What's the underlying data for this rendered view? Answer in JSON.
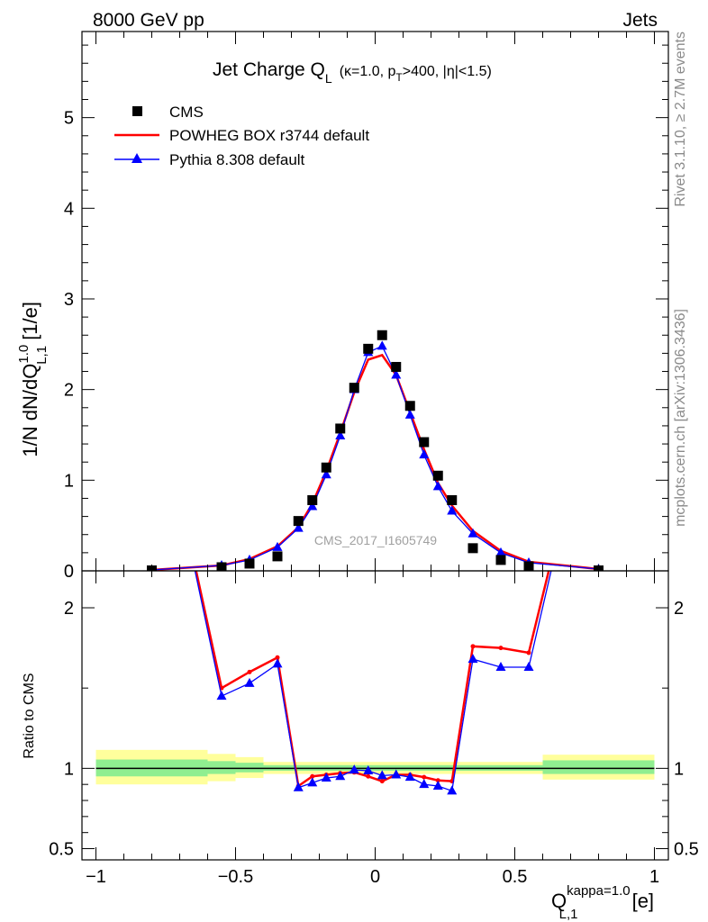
{
  "header": {
    "left": "8000 GeV pp",
    "right": "Jets"
  },
  "side_labels": {
    "rivet": "Rivet 3.1.10, ≥ 2.7M events",
    "mcplots": "mcplots.cern.ch [arXiv:1306.3436]"
  },
  "watermark": "CMS_2017_I1605749",
  "chart_data": [
    {
      "type": "line",
      "panel": "main",
      "title": {
        "main": "Jet Charge Q",
        "main_sub": "L",
        "params": "(κ=1.0, p",
        "params_sub": "T",
        "params_rest": ">400, |η|<1.5)"
      },
      "ylabel": {
        "prefix": "1/N dN/dQ",
        "sup": "1.0",
        "sub": "L,1",
        "suffix": " [1/e]"
      },
      "xlim": [
        -1.05,
        1.05
      ],
      "ylim": [
        0,
        5.95
      ],
      "yticks": [
        0,
        1,
        2,
        3,
        4,
        5
      ],
      "ytick_labels": [
        "0",
        "1",
        "2",
        "3",
        "4",
        "5"
      ],
      "legend_position": "top-left",
      "legend": [
        "CMS",
        "POWHEG BOX r3744 default",
        "Pythia 8.308 default"
      ],
      "x": [
        -0.8,
        -0.55,
        -0.45,
        -0.35,
        -0.275,
        -0.225,
        -0.175,
        -0.125,
        -0.075,
        -0.025,
        0.025,
        0.075,
        0.125,
        0.175,
        0.225,
        0.275,
        0.35,
        0.45,
        0.55,
        0.8
      ],
      "series": [
        {
          "name": "CMS",
          "color": "#000000",
          "marker": "square",
          "values": [
            0.005,
            0.04,
            0.08,
            0.16,
            0.55,
            0.78,
            1.14,
            1.57,
            2.02,
            2.45,
            2.6,
            2.25,
            1.82,
            1.42,
            1.05,
            0.78,
            0.25,
            0.12,
            0.05,
            0.005
          ]
        },
        {
          "name": "POWHEG BOX r3744 default",
          "color": "#ff0000",
          "marker": "none",
          "values": [
            0.01,
            0.06,
            0.13,
            0.27,
            0.48,
            0.74,
            1.1,
            1.52,
            1.97,
            2.33,
            2.38,
            2.16,
            1.75,
            1.34,
            0.97,
            0.72,
            0.44,
            0.22,
            0.1,
            0.02
          ]
        },
        {
          "name": "Pythia 8.308 default",
          "color": "#0000ff",
          "marker": "triangle",
          "values": [
            0.01,
            0.06,
            0.12,
            0.26,
            0.47,
            0.71,
            1.06,
            1.49,
            2.0,
            2.41,
            2.48,
            2.16,
            1.72,
            1.28,
            0.93,
            0.66,
            0.41,
            0.2,
            0.09,
            0.02
          ]
        }
      ]
    },
    {
      "type": "line",
      "panel": "ratio",
      "ylabel": "Ratio to CMS",
      "xlabel": {
        "prefix": "Q",
        "sup": "kappa=1.0",
        "sub": "L,1",
        "suffix": " [e]"
      },
      "xlim": [
        -1.05,
        1.05
      ],
      "ylim": [
        0.43,
        2.23
      ],
      "xticks": [
        -1,
        -0.5,
        0,
        0.5,
        1
      ],
      "xtick_labels": [
        "−1",
        "−0.5",
        "0",
        "0.5",
        "1"
      ],
      "yticks": [
        0.5,
        1,
        2
      ],
      "ytick_labels": [
        "0.5",
        "1",
        "2"
      ],
      "reference": 1,
      "bands": {
        "edges": [
          -1,
          -0.6,
          -0.5,
          -0.4,
          0.6,
          1
        ],
        "yellow": [
          [
            0.9,
            1.115
          ],
          [
            0.92,
            1.09
          ],
          [
            0.94,
            1.07
          ],
          [
            0.965,
            1.04
          ],
          [
            0.93,
            1.085
          ]
        ],
        "green": [
          [
            0.95,
            1.055
          ],
          [
            0.965,
            1.045
          ],
          [
            0.975,
            1.035
          ],
          [
            0.985,
            1.02
          ],
          [
            0.965,
            1.05
          ]
        ]
      },
      "x": [
        -0.8,
        -0.55,
        -0.45,
        -0.35,
        -0.275,
        -0.225,
        -0.175,
        -0.125,
        -0.075,
        -0.025,
        0.025,
        0.075,
        0.125,
        0.175,
        0.225,
        0.275,
        0.35,
        0.45,
        0.55,
        0.8
      ],
      "series": [
        {
          "name": "POWHEG BOX r3744 default",
          "color": "#ff0000",
          "marker": "dot",
          "values": [
            3.5,
            1.5,
            1.6,
            1.69,
            0.89,
            0.95,
            0.96,
            0.97,
            0.975,
            0.95,
            0.92,
            0.96,
            0.96,
            0.945,
            0.925,
            0.92,
            1.76,
            1.75,
            1.72,
            3.5
          ]
        },
        {
          "name": "Pythia 8.308 default",
          "color": "#0000ff",
          "marker": "triangle",
          "values": [
            3.5,
            1.45,
            1.53,
            1.65,
            0.88,
            0.91,
            0.94,
            0.95,
            0.99,
            0.985,
            0.955,
            0.96,
            0.945,
            0.9,
            0.89,
            0.86,
            1.68,
            1.63,
            1.63,
            3.5
          ]
        }
      ]
    }
  ]
}
